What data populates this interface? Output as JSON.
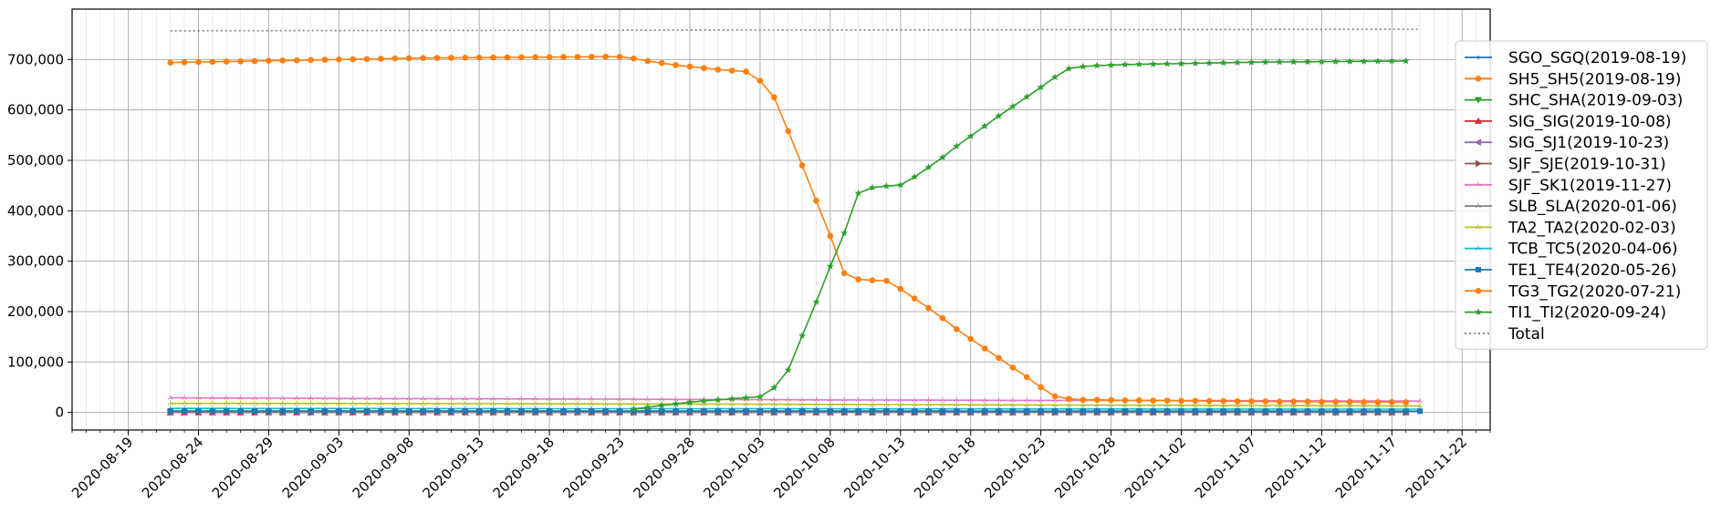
{
  "chart_data": {
    "type": "line",
    "title": "",
    "xlabel": "",
    "ylabel": "",
    "x_start": "2020-08-22",
    "x_end": "2020-11-18",
    "xlim": [
      "2020-08-15",
      "2020-11-24"
    ],
    "ylim": [
      -35000,
      800000
    ],
    "x_ticks": [
      "2020-08-19",
      "2020-08-24",
      "2020-08-29",
      "2020-09-03",
      "2020-09-08",
      "2020-09-13",
      "2020-09-18",
      "2020-09-23",
      "2020-09-28",
      "2020-10-03",
      "2020-10-08",
      "2020-10-13",
      "2020-10-18",
      "2020-10-23",
      "2020-10-28",
      "2020-11-02",
      "2020-11-07",
      "2020-11-12",
      "2020-11-17",
      "2020-11-22"
    ],
    "y_ticks": [
      0,
      100000,
      200000,
      300000,
      400000,
      500000,
      600000,
      700000
    ],
    "y_tick_labels": [
      "0",
      "100,000",
      "200,000",
      "300,000",
      "400,000",
      "500,000",
      "600,000",
      "700,000"
    ],
    "grid": "major and minor",
    "legend_position": "right",
    "series": [
      {
        "name": "SGO_SGQ(2019-08-19)",
        "color": "#1f77b4",
        "marker": "point",
        "values": [
          0
        ]
      },
      {
        "name": "SH5_SH5(2019-08-19)",
        "color": "#ff7f0e",
        "marker": "circle",
        "values": [
          0
        ]
      },
      {
        "name": "SHC_SHA(2019-09-03)",
        "color": "#2ca02c",
        "marker": "triangle-down",
        "values": [
          0
        ]
      },
      {
        "name": "SIG_SIG(2019-10-08)",
        "color": "#d62728",
        "marker": "triangle-up",
        "values": [
          0
        ]
      },
      {
        "name": "SIG_SJ1(2019-10-23)",
        "color": "#9467bd",
        "marker": "triangle-left",
        "values": [
          0
        ]
      },
      {
        "name": "SJF_SJE(2019-10-31)",
        "color": "#8c564b",
        "marker": "triangle-right",
        "values": [
          0
        ]
      },
      {
        "name": "SJF_SK1(2019-11-27)",
        "color": "#e377c2",
        "marker": "tri",
        "values": [
          [
            0,
            29000
          ],
          [
            15,
            27500
          ],
          [
            30,
            26500
          ],
          [
            45,
            25000
          ],
          [
            60,
            24000
          ],
          [
            75,
            23500
          ],
          [
            89,
            22500
          ]
        ]
      },
      {
        "name": "SLB_SLA(2020-01-06)",
        "color": "#7f7f7f",
        "marker": "tri",
        "values": [
          0
        ]
      },
      {
        "name": "TA2_TA2(2020-02-03)",
        "color": "#bcbd22",
        "marker": "tri",
        "values": [
          [
            0,
            18000
          ],
          [
            20,
            17500
          ],
          [
            40,
            16500
          ],
          [
            60,
            15000
          ],
          [
            75,
            14000
          ],
          [
            89,
            13000
          ]
        ]
      },
      {
        "name": "TCB_TC5(2020-04-06)",
        "color": "#17becf",
        "marker": "tri",
        "values": [
          [
            0,
            8000
          ],
          [
            30,
            7500
          ],
          [
            60,
            7000
          ],
          [
            89,
            6500
          ]
        ]
      },
      {
        "name": "TE1_TE4(2020-05-26)",
        "color": "#1f77b4",
        "marker": "square",
        "values": [
          [
            0,
            3000
          ],
          [
            89,
            2500
          ]
        ]
      },
      {
        "name": "TG3_TG2(2020-07-21)",
        "color": "#ff7f0e",
        "marker": "circle",
        "values": [
          694000,
          694500,
          695000,
          695500,
          696000,
          696500,
          697000,
          697500,
          698000,
          698500,
          699000,
          699500,
          700000,
          700500,
          701000,
          701500,
          702000,
          702500,
          703000,
          703200,
          703400,
          703600,
          703800,
          704000,
          704200,
          704400,
          704600,
          704800,
          705000,
          705200,
          705400,
          705600,
          705500,
          702000,
          697000,
          693000,
          689000,
          686000,
          683000,
          680000,
          678000,
          676000,
          658000,
          625000,
          558000,
          490000,
          420000,
          350000,
          276000,
          264000,
          262000,
          261000,
          245000,
          226000,
          207000,
          187000,
          165000,
          146000,
          127000,
          108000,
          89000,
          70000,
          50000,
          32000,
          27000,
          25000,
          25000,
          24500,
          24000,
          24000,
          23500,
          23500,
          23000,
          23000,
          22500,
          22500,
          22000,
          22000,
          22000,
          21500,
          21500,
          21500,
          21000,
          21000,
          21000,
          20500,
          20500,
          20500,
          20000
        ]
      },
      {
        "name": "TI1_TI2(2020-09-24)",
        "color": "#2ca02c",
        "marker": "star",
        "values": [
          [
            33,
            7000
          ],
          [
            34,
            10000
          ],
          [
            35,
            14000
          ],
          [
            36,
            17000
          ],
          [
            37,
            20000
          ],
          [
            38,
            23000
          ],
          [
            39,
            25000
          ],
          [
            40,
            27000
          ],
          [
            41,
            29000
          ],
          [
            42,
            31000
          ],
          [
            43,
            49000
          ],
          [
            44,
            84000
          ],
          [
            45,
            152000
          ],
          [
            46,
            219000
          ],
          [
            47,
            290000
          ],
          [
            48,
            356000
          ],
          [
            49,
            435000
          ],
          [
            50,
            446000
          ],
          [
            51,
            449000
          ],
          [
            52,
            451000
          ],
          [
            53,
            467000
          ],
          [
            54,
            486000
          ],
          [
            55,
            506000
          ],
          [
            56,
            528000
          ],
          [
            57,
            548000
          ],
          [
            58,
            568000
          ],
          [
            59,
            588000
          ],
          [
            60,
            607000
          ],
          [
            61,
            626000
          ],
          [
            62,
            645000
          ],
          [
            63,
            665000
          ],
          [
            64,
            682000
          ],
          [
            65,
            686000
          ],
          [
            66,
            688000
          ],
          [
            67,
            689000
          ],
          [
            68,
            690000
          ],
          [
            69,
            690500
          ],
          [
            70,
            691000
          ],
          [
            71,
            691500
          ],
          [
            72,
            692000
          ],
          [
            73,
            692500
          ],
          [
            74,
            693000
          ],
          [
            75,
            693500
          ],
          [
            76,
            694000
          ],
          [
            77,
            694500
          ],
          [
            78,
            695000
          ],
          [
            79,
            695200
          ],
          [
            80,
            695400
          ],
          [
            81,
            695600
          ],
          [
            82,
            695800
          ],
          [
            83,
            696000
          ],
          [
            84,
            696200
          ],
          [
            85,
            696400
          ],
          [
            86,
            696600
          ],
          [
            87,
            696800
          ],
          [
            88,
            697000
          ]
        ]
      },
      {
        "name": "Total",
        "color": "#7f7f7f",
        "marker": "none",
        "dash": "dotted",
        "values": [
          [
            0,
            757000
          ],
          [
            89,
            760000
          ]
        ]
      }
    ]
  }
}
